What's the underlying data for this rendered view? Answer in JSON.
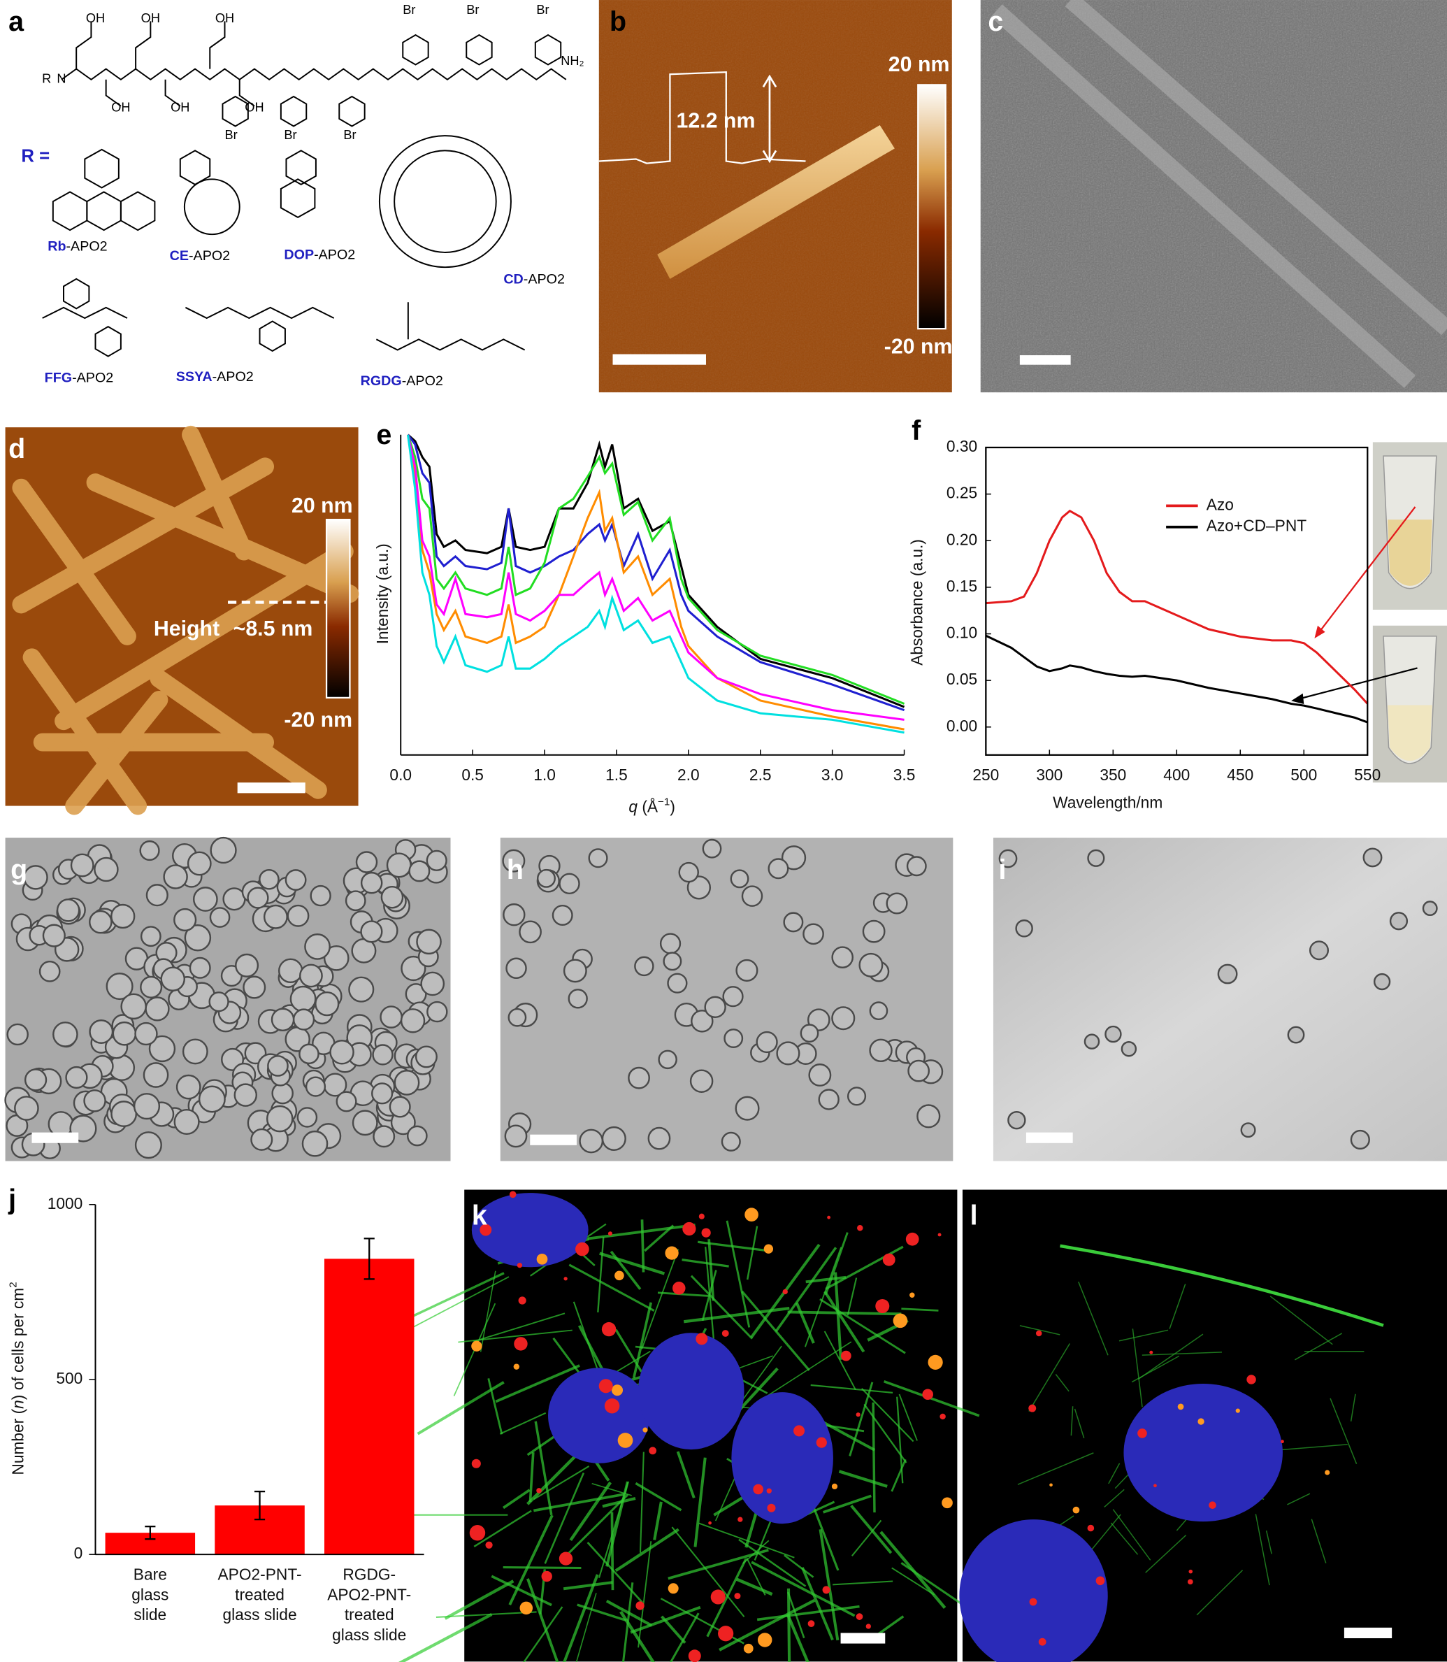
{
  "panels": {
    "labels": [
      "a",
      "b",
      "c",
      "d",
      "e",
      "f",
      "g",
      "h",
      "i",
      "j",
      "k",
      "l"
    ]
  },
  "panel_a": {
    "r_label": "R =",
    "atoms": [
      "OH",
      "OH",
      "OH",
      "OH",
      "OH",
      "OH",
      "Br",
      "Br",
      "Br",
      "Br",
      "Br",
      "Br",
      "NH₂",
      "R",
      "N"
    ],
    "groups": [
      {
        "prefix": "Rb",
        "suffix": "-APO2"
      },
      {
        "prefix": "CE",
        "suffix": "-APO2"
      },
      {
        "prefix": "DOP",
        "suffix": "-APO2"
      },
      {
        "prefix": "CD",
        "suffix": "-APO2"
      },
      {
        "prefix": "FFG",
        "suffix": "-APO2"
      },
      {
        "prefix": "SSYA",
        "suffix": "-APO2"
      },
      {
        "prefix": "RGDG",
        "suffix": "-APO2"
      }
    ]
  },
  "panel_b": {
    "height": "12.2 nm",
    "scale_max": "20 nm",
    "scale_min": "-20 nm"
  },
  "panel_d": {
    "height_label": "Height",
    "height": "~8.5 nm",
    "scale_max": "20 nm",
    "scale_min": "-20 nm"
  },
  "chart_data": [
    {
      "type": "line",
      "x_label": [
        {
          "text": "q",
          "style": "italic"
        },
        " (Å",
        {
          "text": "−1",
          "style": "sup"
        },
        ")"
      ],
      "y_label": "Intensity (a.u.)",
      "x": [
        0.05,
        0.1,
        0.15,
        0.2,
        0.25,
        0.3,
        0.38,
        0.45,
        0.6,
        0.7,
        0.75,
        0.8,
        0.9,
        1.0,
        1.1,
        1.2,
        1.3,
        1.38,
        1.42,
        1.47,
        1.55,
        1.65,
        1.75,
        1.87,
        1.95,
        2.0,
        2.2,
        2.5,
        3.0,
        3.5
      ],
      "xlim": [
        0,
        3.5
      ],
      "xticks": [
        {
          "value": 0,
          "label": "0.0"
        },
        0.5,
        {
          "value": 1,
          "label": "1.0"
        },
        1.5,
        {
          "value": 2,
          "label": "2.0"
        },
        2.5,
        {
          "value": 3,
          "label": "3.0"
        },
        3.5
      ],
      "ylim": [
        0,
        100
      ],
      "series": [
        {
          "color": "#000000",
          "values": [
            100,
            98,
            93,
            90,
            69,
            65,
            67,
            64,
            63,
            65,
            77,
            65,
            64,
            65,
            77,
            77,
            85,
            97,
            90,
            97,
            77,
            80,
            70,
            73,
            59,
            50,
            40,
            30,
            24,
            15
          ]
        },
        {
          "color": "#1f1fd0",
          "values": [
            100,
            97,
            88,
            85,
            62,
            59,
            62,
            59,
            58,
            60,
            77,
            59,
            57,
            59,
            62,
            64,
            69,
            72,
            67,
            72,
            59,
            69,
            55,
            64,
            50,
            45,
            37,
            29,
            22,
            14
          ]
        },
        {
          "color": "#22dd22",
          "values": [
            100,
            93,
            80,
            77,
            55,
            52,
            57,
            52,
            50,
            52,
            65,
            50,
            52,
            60,
            77,
            80,
            87,
            93,
            88,
            91,
            75,
            79,
            67,
            74,
            55,
            49,
            39,
            31,
            25,
            16
          ]
        },
        {
          "color": "#ff8c00",
          "values": [
            100,
            87,
            64,
            57,
            44,
            39,
            45,
            37,
            35,
            37,
            47,
            35,
            37,
            40,
            50,
            62,
            74,
            82,
            70,
            74,
            57,
            62,
            50,
            55,
            40,
            34,
            24,
            17,
            12,
            8
          ]
        },
        {
          "color": "#ff00ff",
          "values": [
            100,
            90,
            67,
            62,
            47,
            44,
            55,
            44,
            43,
            44,
            57,
            44,
            42,
            45,
            50,
            50,
            54,
            57,
            50,
            55,
            45,
            49,
            42,
            45,
            37,
            32,
            24,
            19,
            14,
            11
          ]
        },
        {
          "color": "#00e0e0",
          "values": [
            100,
            83,
            57,
            50,
            34,
            29,
            37,
            28,
            26,
            28,
            37,
            27,
            27,
            30,
            34,
            37,
            40,
            45,
            40,
            49,
            39,
            42,
            35,
            37,
            29,
            24,
            17,
            13,
            11,
            7
          ]
        }
      ]
    },
    {
      "type": "line",
      "x_label": "Wavelength/nm",
      "y_label": "Absorbance (a.u.)",
      "x": [
        250,
        270,
        280,
        290,
        300,
        310,
        316,
        325,
        335,
        345,
        355,
        365,
        375,
        400,
        425,
        450,
        475,
        490,
        500,
        510,
        525,
        540,
        550
      ],
      "xlim": [
        250,
        550
      ],
      "xticks": [
        250,
        300,
        350,
        400,
        450,
        500,
        550
      ],
      "ylim": [
        -0.03,
        0.3
      ],
      "yticks": [
        {
          "value": 0,
          "label": "0.00"
        },
        {
          "value": 0.05,
          "label": "0.05"
        },
        {
          "value": 0.1,
          "label": "0.10"
        },
        {
          "value": 0.15,
          "label": "0.15"
        },
        {
          "value": 0.2,
          "label": "0.20"
        },
        {
          "value": 0.25,
          "label": "0.25"
        },
        {
          "value": 0.3,
          "label": "0.30"
        }
      ],
      "legend": "upper right",
      "series": [
        {
          "name": "Azo",
          "color": "#e41a1c",
          "values": [
            0.133,
            0.135,
            0.14,
            0.165,
            0.2,
            0.225,
            0.232,
            0.225,
            0.2,
            0.165,
            0.145,
            0.135,
            0.135,
            0.12,
            0.105,
            0.097,
            0.093,
            0.093,
            0.09,
            0.08,
            0.06,
            0.04,
            0.025
          ]
        },
        {
          "name": "Azo+CD–PNT",
          "color": "#000000",
          "values": [
            0.098,
            0.085,
            0.075,
            0.065,
            0.06,
            0.063,
            0.066,
            0.064,
            0.06,
            0.057,
            0.055,
            0.054,
            0.055,
            0.05,
            0.042,
            0.036,
            0.03,
            0.025,
            0.023,
            0.02,
            0.015,
            0.01,
            0.005
          ]
        }
      ]
    },
    {
      "type": "bar",
      "y_label": [
        "Number (",
        {
          "text": "n",
          "style": "italic"
        },
        ") of cells per cm",
        {
          "text": "2",
          "style": "sup"
        }
      ],
      "categories": [
        [
          "Bare",
          "glass",
          "slide"
        ],
        [
          "APO2-PNT-",
          "treated",
          "glass slide"
        ],
        [
          "RGDG-",
          "APO2-PNT-",
          "treated",
          "glass slide"
        ]
      ],
      "values": [
        62,
        140,
        845
      ],
      "errors": [
        18,
        40,
        58
      ],
      "color": "#ff0000",
      "ylim": [
        0,
        1000
      ],
      "yticks": [
        0,
        500,
        1000
      ]
    }
  ]
}
